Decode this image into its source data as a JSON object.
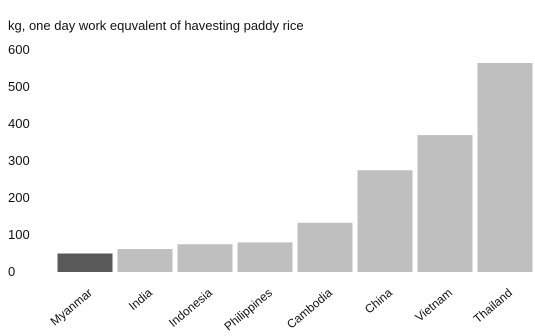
{
  "chart_data": {
    "type": "bar",
    "title": "kg, one day work equvalent of havesting paddy rice",
    "xlabel": "",
    "ylabel": "",
    "categories": [
      "Myanmar",
      "India",
      "Indonesia",
      "Philippines",
      "Cambodia",
      "China",
      "Vietnam",
      "Thailand"
    ],
    "values": [
      50,
      62,
      75,
      80,
      133,
      275,
      370,
      565
    ],
    "ylim": [
      0,
      600
    ],
    "yticks": [
      0,
      100,
      200,
      300,
      400,
      500,
      600
    ],
    "grid": false,
    "legend": "none",
    "colors": {
      "highlight": "#595959",
      "default": "#bfbfbf"
    },
    "highlight_category": "Myanmar"
  }
}
